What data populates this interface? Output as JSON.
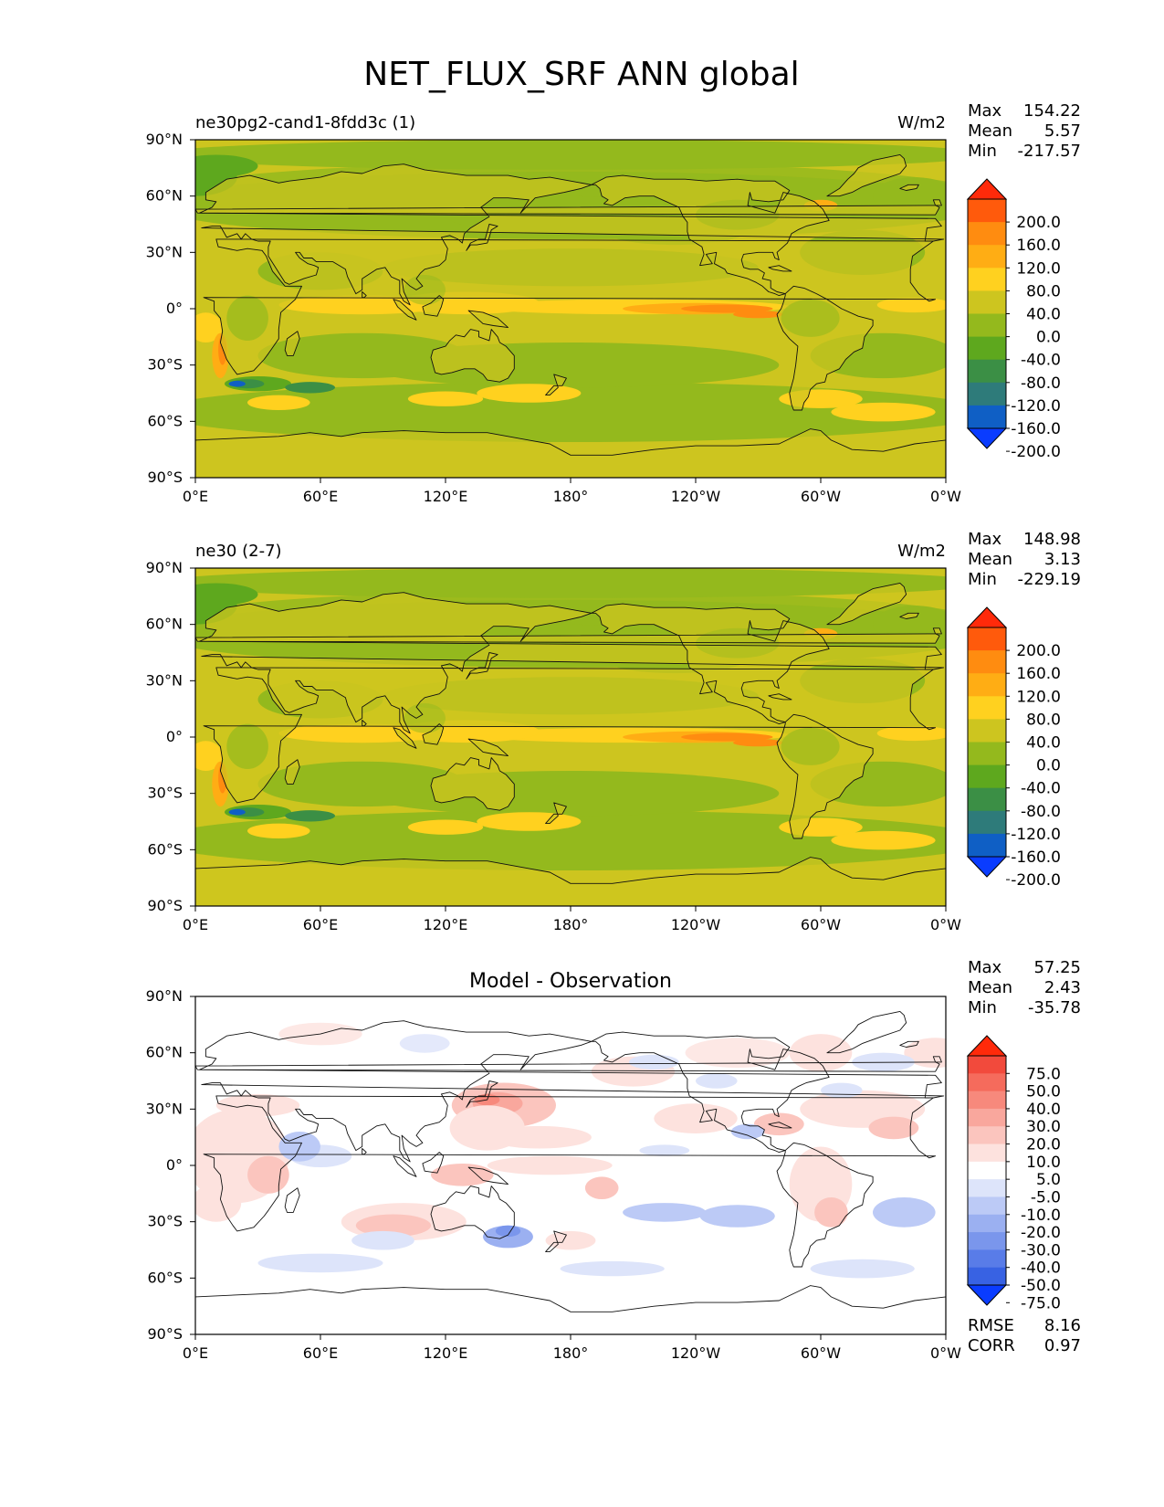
{
  "figure": {
    "title": "NET_FLUX_SRF ANN global"
  },
  "chart_data": [
    {
      "type": "heatmap",
      "panel": "test",
      "subtitle_left": "ne30pg2-cand1-8fdd3c (1)",
      "subtitle_center": "",
      "units": "W/m2",
      "stats": {
        "max_label": "Max",
        "max": "154.22",
        "mean_label": "Mean",
        "mean": "5.57",
        "min_label": "Min",
        "min": "-217.57"
      },
      "x_ticks": [
        "0°E",
        "60°E",
        "120°E",
        "180°",
        "120°W",
        "60°W",
        "0°W"
      ],
      "y_ticks": [
        "90°N",
        "60°N",
        "30°N",
        "0°",
        "30°S",
        "60°S",
        "90°S"
      ],
      "xlim": [
        0,
        360
      ],
      "ylim": [
        -90,
        90
      ],
      "colorbar": {
        "levels": [
          "200.0",
          "160.0",
          "120.0",
          "80.0",
          "40.0",
          "0.0",
          "-40.0",
          "-80.0",
          "-120.0",
          "-160.0",
          "-200.0"
        ],
        "colors": [
          "#ff2a0a",
          "#ff5a0c",
          "#ff8c10",
          "#ffad14",
          "#ffd11f",
          "#cdc51f",
          "#94b91d",
          "#5ea81e",
          "#3b8f45",
          "#2e7b7a",
          "#0f5fc5",
          "#0a3cff"
        ]
      }
    },
    {
      "type": "heatmap",
      "panel": "reference",
      "subtitle_left": "ne30 (2-7)",
      "subtitle_center": "",
      "units": "W/m2",
      "stats": {
        "max_label": "Max",
        "max": "148.98",
        "mean_label": "Mean",
        "mean": "3.13",
        "min_label": "Min",
        "min": "-229.19"
      },
      "x_ticks": [
        "0°E",
        "60°E",
        "120°E",
        "180°",
        "120°W",
        "60°W",
        "0°W"
      ],
      "y_ticks": [
        "90°N",
        "60°N",
        "30°N",
        "0°",
        "30°S",
        "60°S",
        "90°S"
      ],
      "xlim": [
        0,
        360
      ],
      "ylim": [
        -90,
        90
      ],
      "colorbar": {
        "levels": [
          "200.0",
          "160.0",
          "120.0",
          "80.0",
          "40.0",
          "0.0",
          "-40.0",
          "-80.0",
          "-120.0",
          "-160.0",
          "-200.0"
        ],
        "colors": [
          "#ff2a0a",
          "#ff5a0c",
          "#ff8c10",
          "#ffad14",
          "#ffd11f",
          "#cdc51f",
          "#94b91d",
          "#5ea81e",
          "#3b8f45",
          "#2e7b7a",
          "#0f5fc5",
          "#0a3cff"
        ]
      }
    },
    {
      "type": "heatmap",
      "panel": "difference",
      "subtitle_left": "",
      "subtitle_center": "Model - Observation",
      "units": "",
      "stats": {
        "max_label": "Max",
        "max": "57.25",
        "mean_label": "Mean",
        "mean": "2.43",
        "min_label": "Min",
        "min": "-35.78"
      },
      "metrics": {
        "rmse_label": "RMSE",
        "rmse": "8.16",
        "corr_label": "CORR",
        "corr": "0.97"
      },
      "x_ticks": [
        "0°E",
        "60°E",
        "120°E",
        "180°",
        "120°W",
        "60°W",
        "0°W"
      ],
      "y_ticks": [
        "90°N",
        "60°N",
        "30°N",
        "0°",
        "30°S",
        "60°S",
        "90°S"
      ],
      "xlim": [
        0,
        360
      ],
      "ylim": [
        -90,
        90
      ],
      "colorbar": {
        "levels": [
          "75.0",
          "50.0",
          "40.0",
          "30.0",
          "20.0",
          "10.0",
          "5.0",
          "-5.0",
          "-10.0",
          "-20.0",
          "-30.0",
          "-40.0",
          "-50.0",
          "-75.0"
        ],
        "colors": [
          "#ff2a0a",
          "#f24a3c",
          "#f56b5c",
          "#f7897c",
          "#f9a79d",
          "#fbc5be",
          "#fde2de",
          "#ffffff",
          "#dde4fa",
          "#bccaf6",
          "#9bb0f1",
          "#7a96ec",
          "#597ce8",
          "#3862e3",
          "#0a3cff"
        ]
      }
    }
  ]
}
